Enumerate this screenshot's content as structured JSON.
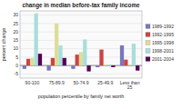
{
  "chart_data": {
    "type": "bar",
    "title": "change in median before-tax family income",
    "xlabel": "population percentile by family net worth",
    "ylabel": "percent change",
    "categories": [
      "90-100",
      "75-89.9",
      "50-74.9",
      "25-49.9",
      "Less than\n25"
    ],
    "series": [
      {
        "name": "1989-1992",
        "color": "#7777bb",
        "values": [
          -2.0,
          -3.0,
          -2.0,
          -1.0,
          12.0
        ]
      },
      {
        "name": "1992-1995",
        "color": "#cc4444",
        "values": [
          4.0,
          4.5,
          6.5,
          9.5,
          3.5
        ]
      },
      {
        "name": "1995-1998",
        "color": "#dddd99",
        "values": [
          4.5,
          25.0,
          8.0,
          0.5,
          0.5
        ]
      },
      {
        "name": "1998-2001",
        "color": "#aadddd",
        "values": [
          31.0,
          12.0,
          15.5,
          0.5,
          13.0
        ]
      },
      {
        "name": "2001-2004",
        "color": "#550055",
        "values": [
          7.0,
          4.5,
          -3.5,
          -1.0,
          -3.0
        ]
      }
    ],
    "ylim": [
      -7.5,
      32.5
    ],
    "yticks": [
      -5,
      0,
      5,
      10,
      15,
      20,
      25,
      30
    ],
    "grid": true,
    "legend": "right"
  }
}
